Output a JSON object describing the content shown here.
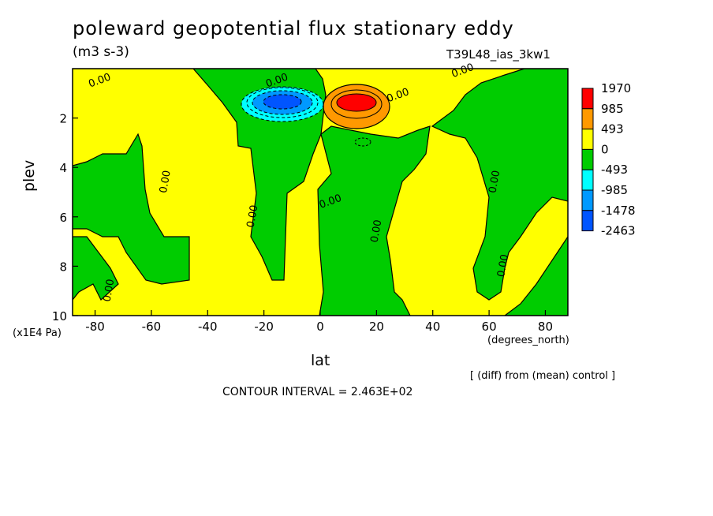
{
  "chart_data": {
    "type": "heatmap",
    "title": "poleward geopotential flux stationary eddy",
    "units": "(m3 s-3)",
    "experiment": "T39L48_ias_3kw1",
    "xlabel": "lat",
    "xunits": "(degrees_north)",
    "ylabel": "plev",
    "yunits": "(x1E4 Pa)",
    "xlim": [
      -88,
      88
    ],
    "ylim": [
      10,
      0
    ],
    "xticks": [
      -80,
      -60,
      -40,
      -20,
      0,
      20,
      40,
      60,
      80
    ],
    "yticks": [
      2,
      4,
      6,
      8,
      10
    ],
    "colorbar": {
      "levels": [
        "1970",
        "985",
        "493",
        "0",
        "-493",
        "-985",
        "-1478",
        "-2463"
      ],
      "colors": [
        "#ff0000",
        "#ff9900",
        "#ffff00",
        "#00cc00",
        "#00ffff",
        "#0099ff",
        "#0055ff"
      ]
    },
    "contour_labels": [
      {
        "text": "0.00",
        "x": -78,
        "y": 0.6
      },
      {
        "text": "0.00",
        "x": -15,
        "y": 0.6
      },
      {
        "text": "0.00",
        "x": 51,
        "y": 0.2
      },
      {
        "text": "0.00",
        "x": 28,
        "y": 1.2
      },
      {
        "text": "0.00",
        "x": -54,
        "y": 4.6
      },
      {
        "text": "0.00",
        "x": -23,
        "y": 6.0
      },
      {
        "text": "0.00",
        "x": 4,
        "y": 5.5
      },
      {
        "text": "0.00",
        "x": 21,
        "y": 6.6
      },
      {
        "text": "0.00",
        "x": 63,
        "y": 4.6
      },
      {
        "text": "0.00",
        "x": 66,
        "y": 8.0
      },
      {
        "text": "0.00",
        "x": -74,
        "y": 9.0
      }
    ],
    "annotation": "[ (diff) from (mean) control ]",
    "contour_interval": "CONTOUR INTERVAL = 2.463E+02"
  }
}
